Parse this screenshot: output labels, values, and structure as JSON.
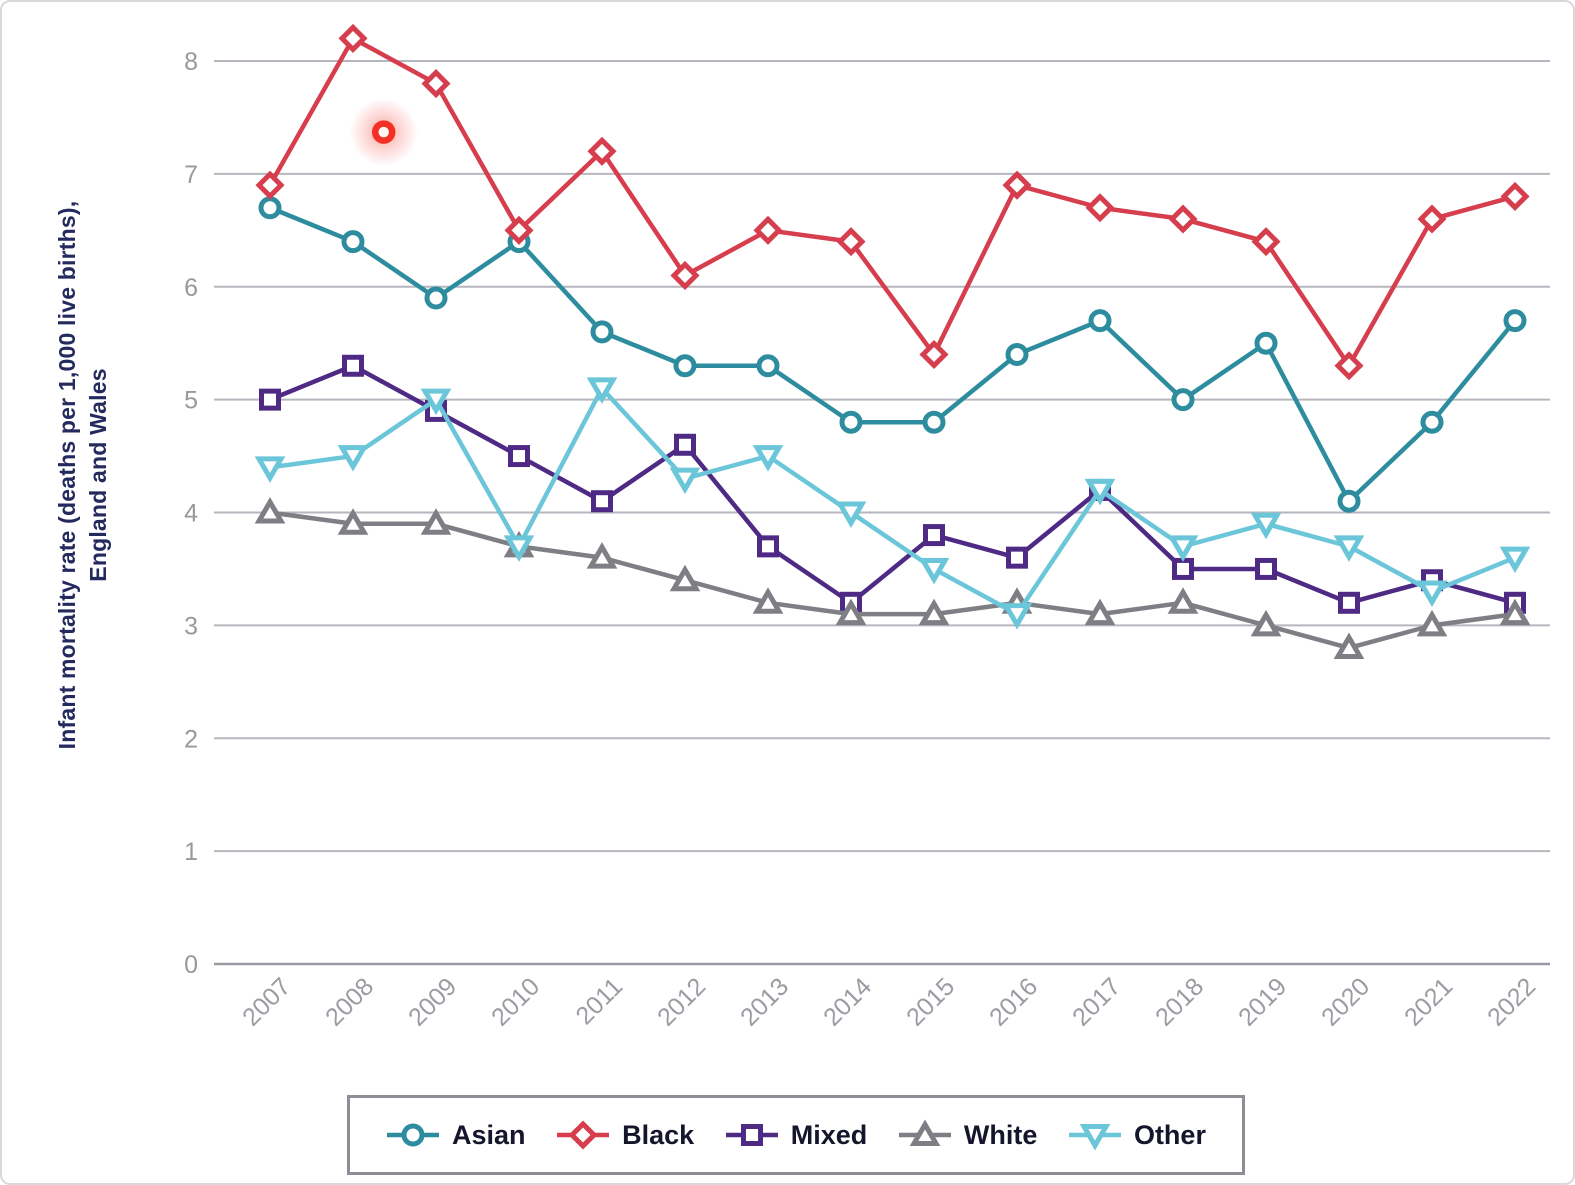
{
  "chart_data": {
    "type": "line",
    "title": "",
    "xlabel": "",
    "ylabel_lines": [
      "Infant mortality rate (deaths per 1,000 live births),",
      "England and Wales"
    ],
    "categories": [
      "2007",
      "2008",
      "2009",
      "2010",
      "2011",
      "2012",
      "2013",
      "2014",
      "2015",
      "2016",
      "2017",
      "2018",
      "2019",
      "2020",
      "2021",
      "2022"
    ],
    "yticks": [
      0,
      1,
      2,
      3,
      4,
      5,
      6,
      7,
      8
    ],
    "ylim": [
      0,
      8.4
    ],
    "grid": true,
    "legend_position": "bottom",
    "series": [
      {
        "name": "Asian",
        "marker": "circle",
        "color": "#2D8C9E",
        "values": [
          6.7,
          6.4,
          5.9,
          6.4,
          5.6,
          5.3,
          5.3,
          4.8,
          4.8,
          5.4,
          5.7,
          5.0,
          5.5,
          4.1,
          4.8,
          5.7
        ]
      },
      {
        "name": "Black",
        "marker": "diamond",
        "color": "#D63E4E",
        "values": [
          6.9,
          8.2,
          7.8,
          6.5,
          7.2,
          6.1,
          6.5,
          6.4,
          5.4,
          6.9,
          6.7,
          6.6,
          6.4,
          5.3,
          6.6,
          6.8
        ]
      },
      {
        "name": "Mixed",
        "marker": "square",
        "color": "#4F2A85",
        "values": [
          5.0,
          5.3,
          4.9,
          4.5,
          4.1,
          4.6,
          3.7,
          3.2,
          3.8,
          3.6,
          4.2,
          3.5,
          3.5,
          3.2,
          3.4,
          3.2
        ]
      },
      {
        "name": "White",
        "marker": "triangle-up",
        "color": "#7E7E85",
        "values": [
          4.0,
          3.9,
          3.9,
          3.7,
          3.6,
          3.4,
          3.2,
          3.1,
          3.1,
          3.2,
          3.1,
          3.2,
          3.0,
          2.8,
          3.0,
          3.1
        ]
      },
      {
        "name": "Other",
        "marker": "triangle-down",
        "color": "#6AC6D8",
        "values": [
          4.4,
          4.5,
          5.0,
          3.7,
          5.1,
          4.3,
          4.5,
          4.0,
          3.5,
          3.1,
          4.2,
          3.7,
          3.9,
          3.7,
          3.3,
          3.6
        ]
      }
    ],
    "click_indicator": {
      "x_index": 1.37,
      "y_value": 7.37,
      "color": "#F43024"
    }
  }
}
